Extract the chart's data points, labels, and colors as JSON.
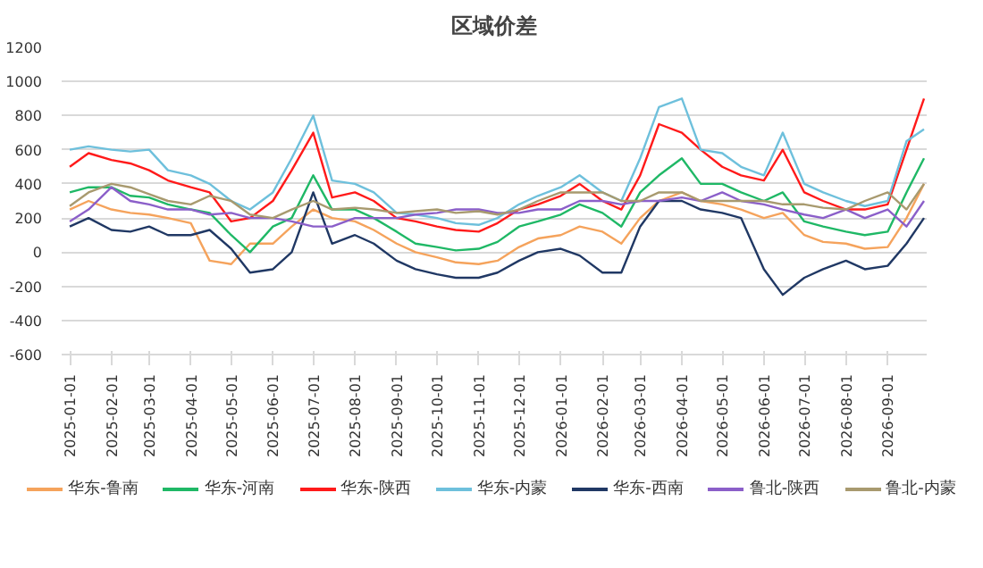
{
  "chart_data": {
    "type": "line",
    "title": "区域价差",
    "x": [
      "2025-01-01",
      "2025-01-15",
      "2025-02-01",
      "2025-02-15",
      "2025-03-01",
      "2025-03-15",
      "2025-04-01",
      "2025-04-15",
      "2025-05-01",
      "2025-05-15",
      "2025-06-01",
      "2025-06-15",
      "2025-07-01",
      "2025-07-15",
      "2025-08-01",
      "2025-08-15",
      "2025-09-01",
      "2025-09-15",
      "2025-10-01",
      "2025-10-15",
      "2025-11-01",
      "2025-11-15",
      "2025-12-01",
      "2025-12-15",
      "2026-01-01",
      "2026-01-15",
      "2026-02-01",
      "2026-02-15",
      "2026-03-01",
      "2026-03-15",
      "2026-04-01",
      "2026-04-15",
      "2026-05-01",
      "2026-05-15",
      "2026-06-01",
      "2026-06-15",
      "2026-07-01",
      "2026-07-15",
      "2026-08-01",
      "2026-08-15",
      "2026-09-01",
      "2026-09-15",
      "2026-09-28"
    ],
    "series": [
      {
        "name": "华东-鲁南",
        "color": "#f5a35c",
        "values": [
          250,
          300,
          250,
          230,
          220,
          200,
          170,
          -50,
          -70,
          50,
          50,
          150,
          250,
          200,
          180,
          130,
          50,
          0,
          -30,
          -60,
          -70,
          -50,
          30,
          80,
          100,
          150,
          120,
          50,
          200,
          300,
          350,
          300,
          280,
          250,
          200,
          230,
          100,
          60,
          50,
          20,
          30,
          200,
          400
        ]
      },
      {
        "name": "华东-河南",
        "color": "#1fb866",
        "values": [
          350,
          380,
          380,
          330,
          320,
          280,
          250,
          230,
          100,
          0,
          150,
          200,
          450,
          250,
          250,
          200,
          120,
          50,
          30,
          10,
          20,
          60,
          150,
          180,
          220,
          280,
          230,
          150,
          350,
          450,
          550,
          400,
          400,
          350,
          300,
          350,
          180,
          150,
          120,
          100,
          120,
          350,
          550
        ]
      },
      {
        "name": "华东-陕西",
        "color": "#ff1a1a",
        "values": [
          500,
          580,
          540,
          520,
          480,
          420,
          380,
          350,
          180,
          200,
          300,
          480,
          700,
          320,
          350,
          300,
          200,
          180,
          150,
          130,
          120,
          170,
          250,
          280,
          330,
          400,
          300,
          250,
          450,
          750,
          700,
          600,
          500,
          450,
          420,
          600,
          350,
          300,
          250,
          250,
          280,
          600,
          900
        ]
      },
      {
        "name": "华东-内蒙",
        "color": "#6ec0dc",
        "values": [
          600,
          620,
          600,
          590,
          600,
          480,
          450,
          400,
          300,
          250,
          350,
          550,
          800,
          420,
          400,
          350,
          230,
          220,
          200,
          170,
          160,
          200,
          280,
          330,
          380,
          450,
          350,
          300,
          550,
          850,
          900,
          600,
          580,
          500,
          450,
          700,
          400,
          350,
          300,
          270,
          300,
          650,
          720
        ]
      },
      {
        "name": "华东-西南",
        "color": "#203864",
        "values": [
          150,
          200,
          130,
          120,
          150,
          100,
          100,
          130,
          20,
          -120,
          -100,
          0,
          350,
          50,
          100,
          50,
          -50,
          -100,
          -130,
          -150,
          -150,
          -120,
          -50,
          0,
          20,
          -20,
          -120,
          -120,
          150,
          300,
          300,
          250,
          230,
          200,
          -100,
          -250,
          -150,
          -100,
          -50,
          -100,
          -80,
          50,
          200
        ]
      },
      {
        "name": "鲁北-陕西",
        "color": "#8b5fc9",
        "values": [
          180,
          250,
          380,
          300,
          280,
          250,
          250,
          220,
          230,
          200,
          200,
          180,
          150,
          150,
          200,
          200,
          200,
          220,
          230,
          250,
          250,
          230,
          230,
          250,
          250,
          300,
          300,
          280,
          300,
          300,
          320,
          300,
          350,
          300,
          280,
          250,
          220,
          200,
          250,
          200,
          250,
          150,
          300
        ]
      },
      {
        "name": "鲁北-内蒙",
        "color": "#a89a6f",
        "values": [
          270,
          350,
          400,
          380,
          340,
          300,
          280,
          330,
          300,
          220,
          200,
          250,
          300,
          250,
          260,
          250,
          230,
          240,
          250,
          230,
          240,
          220,
          250,
          300,
          350,
          350,
          350,
          300,
          300,
          350,
          350,
          300,
          300,
          300,
          300,
          280,
          280,
          260,
          250,
          300,
          350,
          250,
          400
        ]
      }
    ],
    "xlim": [
      "2024-12-26",
      "2026-09-30"
    ],
    "xticks": [
      {
        "value": "2025-01-01",
        "label": "2025-01-01"
      },
      {
        "value": "2025-02-01",
        "label": "2025-02-01"
      },
      {
        "value": "2025-03-01",
        "label": "2025-03-01"
      },
      {
        "value": "2025-04-01",
        "label": "2025-04-01"
      },
      {
        "value": "2025-05-01",
        "label": "2025-05-01"
      },
      {
        "value": "2025-06-01",
        "label": "2025-06-01"
      },
      {
        "value": "2025-07-01",
        "label": "2025-07-01"
      },
      {
        "value": "2025-08-01",
        "label": "2025-08-01"
      },
      {
        "value": "2025-09-01",
        "label": "2025-09-01"
      },
      {
        "value": "2025-10-01",
        "label": "2025-10-01"
      },
      {
        "value": "2025-11-01",
        "label": "2025-11-01"
      },
      {
        "value": "2025-12-01",
        "label": "2025-12-01"
      },
      {
        "value": "2026-01-01",
        "label": "2026-01-01"
      },
      {
        "value": "2026-02-01",
        "label": "2026-02-01"
      },
      {
        "value": "2026-03-01",
        "label": "2026-03-01"
      },
      {
        "value": "2026-04-01",
        "label": "2026-04-01"
      },
      {
        "value": "2026-05-01",
        "label": "2026-05-01"
      },
      {
        "value": "2026-06-01",
        "label": "2026-06-01"
      },
      {
        "value": "2026-07-01",
        "label": "2026-07-01"
      },
      {
        "value": "2026-08-01",
        "label": "2026-08-01"
      },
      {
        "value": "2026-09-01",
        "label": "2026-09-01"
      }
    ],
    "ylim": [
      -600,
      1200
    ],
    "yticks": [
      -600,
      -400,
      -200,
      0,
      200,
      400,
      600,
      800,
      1000,
      1200
    ],
    "grid": "y",
    "legend": "bottom",
    "marker": "none",
    "line_style": "solid"
  }
}
